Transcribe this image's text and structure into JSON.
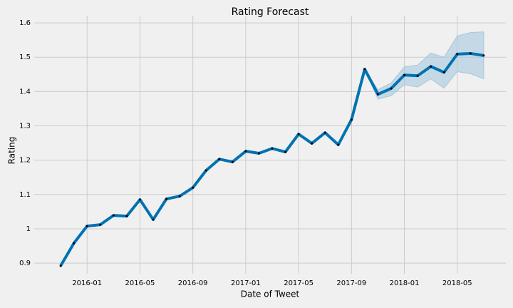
{
  "chart_data": {
    "type": "line",
    "title": "Rating Forecast",
    "x_label": "Date of Tweet",
    "y_label": "Rating",
    "x": [
      "2015-11",
      "2015-12",
      "2016-01",
      "2016-02",
      "2016-03",
      "2016-04",
      "2016-05",
      "2016-06",
      "2016-07",
      "2016-08",
      "2016-09",
      "2016-10",
      "2016-11",
      "2016-12",
      "2017-01",
      "2017-02",
      "2017-03",
      "2017-04",
      "2017-05",
      "2017-06",
      "2017-07",
      "2017-08",
      "2017-09",
      "2017-10",
      "2017-11",
      "2017-12",
      "2018-01",
      "2018-02",
      "2018-03",
      "2018-04",
      "2018-05",
      "2018-06",
      "2018-07"
    ],
    "values": [
      0.892,
      0.958,
      1.008,
      1.012,
      1.039,
      1.037,
      1.085,
      1.027,
      1.087,
      1.095,
      1.12,
      1.17,
      1.203,
      1.195,
      1.226,
      1.22,
      1.234,
      1.224,
      1.276,
      1.249,
      1.28,
      1.245,
      1.318,
      1.465,
      1.392,
      1.409,
      1.448,
      1.446,
      1.473,
      1.456,
      1.509,
      1.511,
      1.505
    ],
    "color": "#0072b2",
    "interval": {
      "x": [
        "2017-10",
        "2017-11",
        "2017-12",
        "2018-01",
        "2018-02",
        "2018-03",
        "2018-04",
        "2018-05",
        "2018-06",
        "2018-07"
      ],
      "upper": [
        1.465,
        1.405,
        1.425,
        1.472,
        1.477,
        1.512,
        1.5,
        1.562,
        1.572,
        1.574
      ],
      "lower": [
        1.465,
        1.378,
        1.388,
        1.42,
        1.413,
        1.437,
        1.41,
        1.458,
        1.452,
        1.437
      ],
      "color": "#a6c8de"
    },
    "xlim": [
      "2015-09",
      "2018-09"
    ],
    "xticks": [
      "2016-01",
      "2016-05",
      "2016-09",
      "2017-01",
      "2017-05",
      "2017-09",
      "2018-01",
      "2018-05"
    ],
    "ylim": [
      0.869,
      1.621
    ],
    "yticks": [
      0.9,
      1.0,
      1.1,
      1.2,
      1.3,
      1.4,
      1.5,
      1.6
    ],
    "grid": true
  }
}
